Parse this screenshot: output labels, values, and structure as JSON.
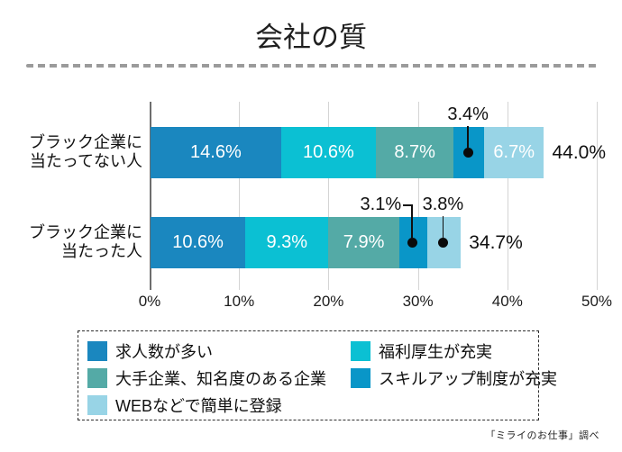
{
  "title": "会社の質",
  "source": "「ミライのお仕事」調べ",
  "colors": {
    "series1": "#1a87bf",
    "series2": "#0bc0d3",
    "series3": "#54aaa6",
    "series4": "#0996c8",
    "series5": "#98d4e6",
    "axis_line": "#6e6e6e",
    "gridline": "#d4d4d4",
    "separator": "#9b9b9b",
    "callout": "#0a0a0a",
    "bar_value_text": "#ffffff"
  },
  "chart_data": {
    "type": "bar",
    "orientation": "horizontal",
    "stacked": true,
    "grid": true,
    "title": "会社の質",
    "categories": [
      "ブラック企業に\n当たってない人",
      "ブラック企業に\n当たった人"
    ],
    "series": [
      {
        "name": "求人数が多い",
        "color": "#1a87bf",
        "values": [
          14.6,
          10.6
        ]
      },
      {
        "name": "福利厚生が充実",
        "color": "#0bc0d3",
        "values": [
          10.6,
          9.3
        ]
      },
      {
        "name": "大手企業、知名度のある企業",
        "color": "#54aaa6",
        "values": [
          8.7,
          7.9
        ]
      },
      {
        "name": "スキルアップ制度が充実",
        "color": "#0996c8",
        "values": [
          3.4,
          3.1
        ]
      },
      {
        "name": "WEBなどで簡単に登録",
        "color": "#98d4e6",
        "values": [
          6.7,
          3.8
        ]
      }
    ],
    "totals": [
      44.0,
      34.7
    ],
    "total_labels": [
      "44.0%",
      "34.7%"
    ],
    "value_labels": [
      [
        "14.6%",
        "10.6%",
        "8.7%",
        "3.4%",
        "6.7%"
      ],
      [
        "10.6%",
        "9.3%",
        "7.9%",
        "3.1%",
        "3.8%"
      ]
    ],
    "callouts": [
      {
        "category": 0,
        "series": 3,
        "label": "3.4%",
        "style": "vertical"
      },
      {
        "category": 1,
        "series": 3,
        "label": "3.1%",
        "style": "elbow-left"
      },
      {
        "category": 1,
        "series": 4,
        "label": "3.8%",
        "style": "vertical"
      }
    ],
    "x_ticks": [
      "0%",
      "10%",
      "20%",
      "30%",
      "40%",
      "50%"
    ],
    "xlim": [
      0,
      50
    ],
    "legend_position": "bottom"
  }
}
